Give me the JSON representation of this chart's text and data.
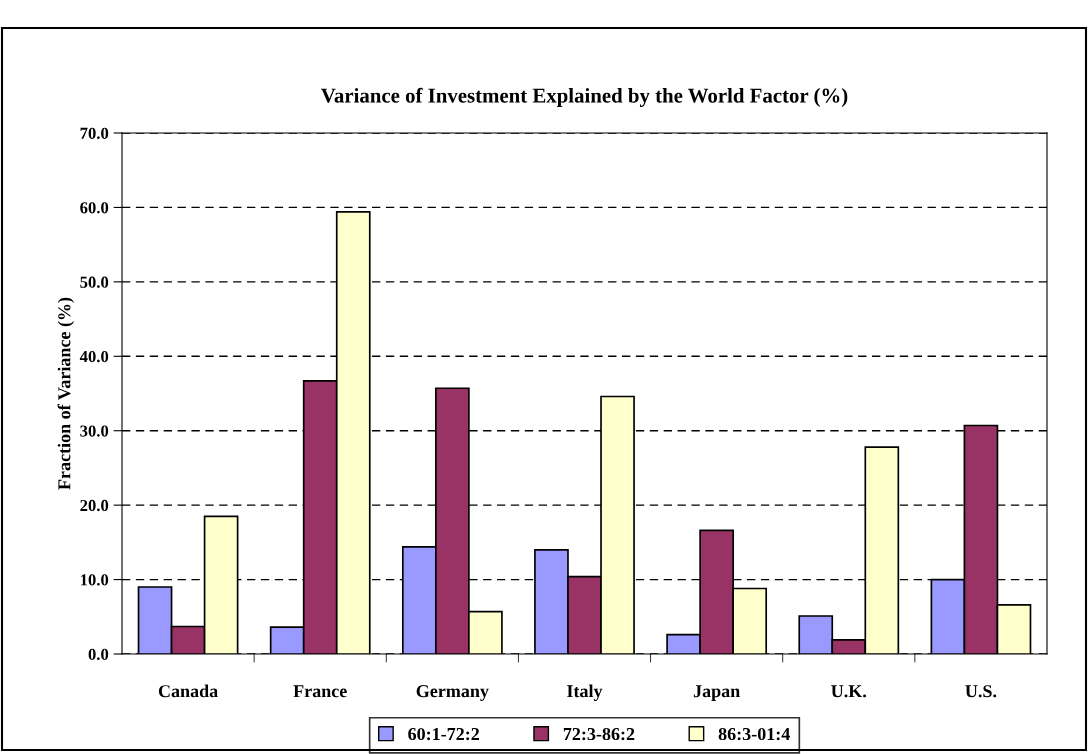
{
  "chart_data": {
    "type": "bar",
    "title": "Variance of Investment Explained by the World Factor (%)",
    "ylabel": "Fraction of Variance (%)",
    "categories": [
      "Canada",
      "France",
      "Germany",
      "Italy",
      "Japan",
      "U.K.",
      "U.S."
    ],
    "series": [
      {
        "name": "60:1-72:2",
        "color": "#9999ff",
        "values": [
          9.0,
          3.6,
          14.4,
          14.0,
          2.6,
          5.1,
          10.0
        ]
      },
      {
        "name": "72:3-86:2",
        "color": "#993366",
        "values": [
          3.7,
          36.7,
          35.7,
          10.4,
          16.6,
          1.9,
          30.7
        ]
      },
      {
        "name": "86:3-01:4",
        "color": "#ffffcc",
        "values": [
          18.5,
          59.4,
          5.7,
          34.6,
          8.8,
          27.8,
          6.6
        ]
      }
    ],
    "ylim": [
      0,
      70
    ],
    "yticks": [
      {
        "value": 0,
        "label": "0.0"
      },
      {
        "value": 10,
        "label": "10.0"
      },
      {
        "value": 20,
        "label": "20.0"
      },
      {
        "value": 30,
        "label": "30.0"
      },
      {
        "value": 40,
        "label": "40.0"
      },
      {
        "value": 50,
        "label": "50.0"
      },
      {
        "value": 60,
        "label": "60.0"
      },
      {
        "value": 70,
        "label": "70.0"
      }
    ],
    "grid": "y",
    "legend": "bottom"
  }
}
